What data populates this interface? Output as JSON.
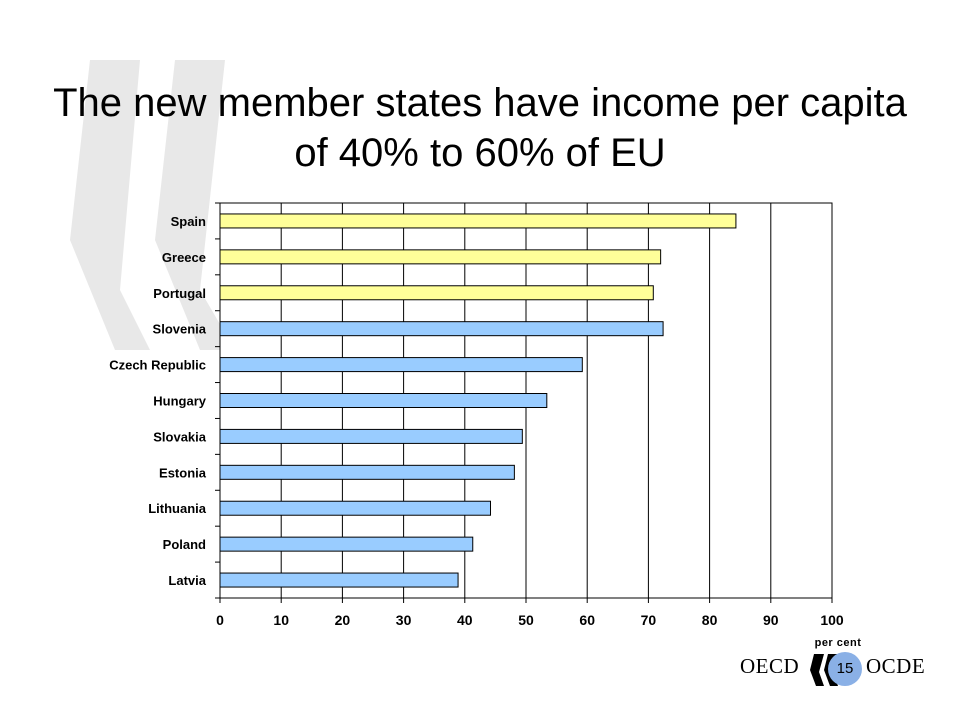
{
  "slide": {
    "title": "The new member states have income per capita of 40% to 60% of EU",
    "page_number": "15",
    "logo_left": "OECD",
    "logo_right": "OCDE",
    "colors": {
      "old_members": "#ffff99",
      "new_members": "#99ccff",
      "watermark": "#e6e6e6",
      "page_badge": "#8ab0e6"
    },
    "icons": [
      "oecd-chevron-logo-icon",
      "watermark-chevron-icon"
    ]
  },
  "chart_data": {
    "type": "bar",
    "orientation": "horizontal",
    "title": "",
    "xlabel": "per cent",
    "ylabel": "",
    "xlim": [
      0,
      100
    ],
    "xticks": [
      0,
      10,
      20,
      30,
      40,
      50,
      60,
      70,
      80,
      90,
      100
    ],
    "grid": "vertical",
    "categories": [
      "Spain",
      "Greece",
      "Portugal",
      "Slovenia",
      "Czech Republic",
      "Hungary",
      "Slovakia",
      "Estonia",
      "Lithuania",
      "Poland",
      "Latvia"
    ],
    "values": [
      84.3,
      72,
      70.8,
      72.4,
      59.2,
      53.4,
      49.4,
      48.1,
      44.2,
      41.3,
      38.9
    ],
    "bar_colors": [
      "#ffff99",
      "#ffff99",
      "#ffff99",
      "#99ccff",
      "#99ccff",
      "#99ccff",
      "#99ccff",
      "#99ccff",
      "#99ccff",
      "#99ccff",
      "#99ccff"
    ]
  }
}
